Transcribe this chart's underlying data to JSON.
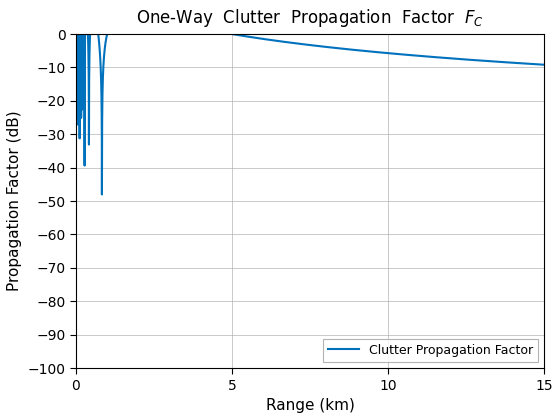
{
  "xlabel": "Range (km)",
  "ylabel": "Propagation Factor (dB)",
  "legend_label": "Clutter Propagation Factor",
  "xlim": [
    0,
    15
  ],
  "ylim": [
    -100,
    0
  ],
  "xticks": [
    0,
    5,
    10,
    15
  ],
  "yticks": [
    0,
    -10,
    -20,
    -30,
    -40,
    -50,
    -60,
    -70,
    -80,
    -90,
    -100
  ],
  "line_color": "#0072bd",
  "line_width": 1.5,
  "background_color": "#ffffff",
  "grid_color": "#b0b0b0"
}
